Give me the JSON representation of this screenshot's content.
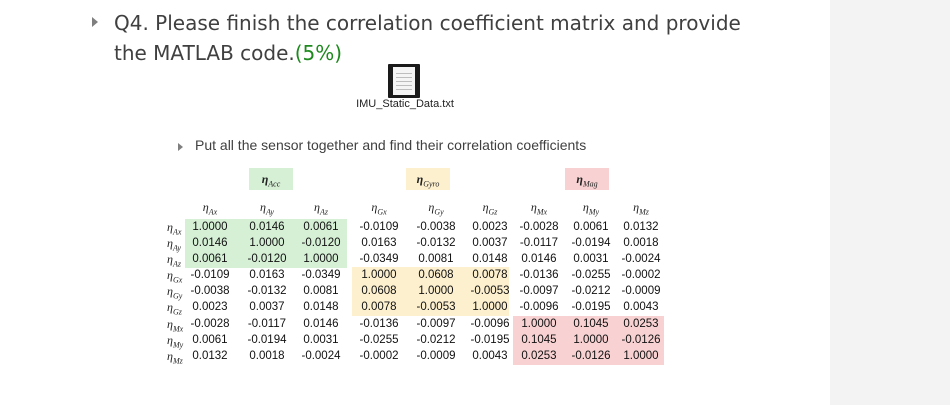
{
  "question": {
    "line1": "Q4. Please finish the correlation coefficient matrix and provide",
    "line2": "the MATLAB code.",
    "points": "(5%)"
  },
  "attachment": {
    "file_name": "IMU_Static_Data.txt",
    "icon": "text-file-icon"
  },
  "instruction": "Put all the sensor together and find their correlation coefficients",
  "groups": [
    {
      "symbol": "η",
      "sub": "Acc",
      "color": "#d6f0d6"
    },
    {
      "symbol": "η",
      "sub": "Gyro",
      "color": "#fdf0cf"
    },
    {
      "symbol": "η",
      "sub": "Mag",
      "color": "#f8d2d2"
    }
  ],
  "matrix": {
    "symbol": "η",
    "labels": [
      "Ax",
      "Ay",
      "Az",
      "Gx",
      "Gy",
      "Gz",
      "Mx",
      "My",
      "Mz"
    ],
    "rows": [
      [
        "1.0000",
        "0.0146",
        "0.0061",
        "-0.0109",
        "-0.0038",
        "0.0023",
        "-0.0028",
        "0.0061",
        "0.0132"
      ],
      [
        "0.0146",
        "1.0000",
        "-0.0120",
        "0.0163",
        "-0.0132",
        "0.0037",
        "-0.0117",
        "-0.0194",
        "0.0018"
      ],
      [
        "0.0061",
        "-0.0120",
        "1.0000",
        "-0.0349",
        "0.0081",
        "0.0148",
        "0.0146",
        "0.0031",
        "-0.0024"
      ],
      [
        "-0.0109",
        "0.0163",
        "-0.0349",
        "1.0000",
        "0.0608",
        "0.0078",
        "-0.0136",
        "-0.0255",
        "-0.0002"
      ],
      [
        "-0.0038",
        "-0.0132",
        "0.0081",
        "0.0608",
        "1.0000",
        "-0.0053",
        "-0.0097",
        "-0.0212",
        "-0.0009"
      ],
      [
        "0.0023",
        "0.0037",
        "0.0148",
        "0.0078",
        "-0.0053",
        "1.0000",
        "-0.0096",
        "-0.0195",
        "0.0043"
      ],
      [
        "-0.0028",
        "-0.0117",
        "0.0146",
        "-0.0136",
        "-0.0097",
        "-0.0096",
        "1.0000",
        "0.1045",
        "0.0253"
      ],
      [
        "0.0061",
        "-0.0194",
        "0.0031",
        "-0.0255",
        "-0.0212",
        "-0.0195",
        "0.1045",
        "1.0000",
        "-0.0126"
      ],
      [
        "0.0132",
        "0.0018",
        "-0.0024",
        "-0.0002",
        "-0.0009",
        "0.0043",
        "0.0253",
        "-0.0126",
        "1.0000"
      ]
    ]
  }
}
